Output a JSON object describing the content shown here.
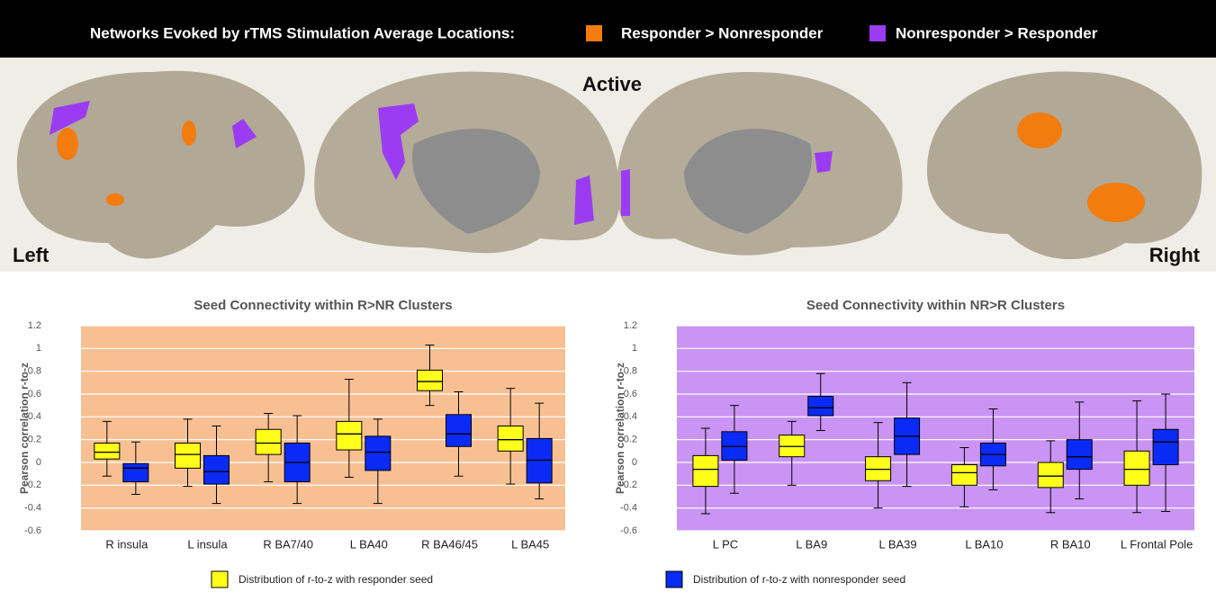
{
  "header": {
    "title": "Networks Evoked by rTMS Stimulation Average Locations:",
    "legend": [
      {
        "label": "Responder > Nonresponder",
        "color": "#f27c0f"
      },
      {
        "label": "Nonresponder > Responder",
        "color": "#9b3cf2"
      }
    ],
    "active": "Active",
    "left": "Left",
    "right": "Right"
  },
  "chart_data": [
    {
      "type": "box",
      "title": "Seed Connectivity within R>NR Clusters",
      "y_label": "Pearson correlation r-to-z",
      "background": "#f8c092",
      "grid": true,
      "categories": [
        "R insula",
        "L insula",
        "R BA7/40",
        "L BA40",
        "R BA46/45",
        "L BA45"
      ],
      "ylim": [
        -0.6,
        1.2
      ],
      "yticks": [
        1.2,
        1,
        0.8,
        0.6,
        0.4,
        0.2,
        0,
        -0.2,
        -0.4,
        -0.6
      ],
      "series": [
        {
          "name": "Distribution of r-to-z  with responder seed",
          "color": "#ffff1a",
          "whislo": [
            -0.12,
            -0.21,
            -0.17,
            -0.13,
            0.5,
            -0.19
          ],
          "q1": [
            0.03,
            -0.05,
            0.07,
            0.11,
            0.63,
            0.1
          ],
          "median": [
            0.09,
            0.07,
            0.17,
            0.25,
            0.71,
            0.2
          ],
          "q3": [
            0.17,
            0.17,
            0.29,
            0.36,
            0.81,
            0.32
          ],
          "whishi": [
            0.36,
            0.38,
            0.43,
            0.73,
            1.03,
            0.65
          ]
        },
        {
          "color": "#0a2bf5",
          "whislo": [
            -0.28,
            -0.36,
            -0.36,
            -0.36,
            -0.12,
            -0.32
          ],
          "q1": [
            -0.17,
            -0.19,
            -0.17,
            -0.07,
            0.14,
            -0.18
          ],
          "median": [
            -0.05,
            -0.08,
            0,
            0.09,
            0.25,
            0.02
          ],
          "q3": [
            -0.01,
            0.06,
            0.17,
            0.23,
            0.42,
            0.21
          ],
          "whishi": [
            0.18,
            0.32,
            0.41,
            0.38,
            0.62,
            0.52
          ]
        }
      ]
    },
    {
      "type": "box",
      "title": "Seed Connectivity within NR>R Clusters",
      "y_label": "Pearson correlation r-to-z",
      "background": "#c994f4",
      "grid": true,
      "categories": [
        "L PC",
        "L BA9",
        "L BA39",
        "L BA10",
        "R BA10",
        "L Frontal Pole"
      ],
      "ylim": [
        -0.6,
        1.2
      ],
      "yticks": [
        1.2,
        1,
        0.8,
        0.6,
        0.4,
        0.2,
        0,
        -0.2,
        -0.4,
        -0.6
      ],
      "series": [
        {
          "color": "#ffff1a",
          "whislo": [
            -0.45,
            -0.2,
            -0.4,
            -0.39,
            -0.44,
            -0.44
          ],
          "q1": [
            -0.21,
            0.05,
            -0.16,
            -0.2,
            -0.22,
            -0.2
          ],
          "median": [
            -0.06,
            0.14,
            -0.06,
            -0.09,
            -0.12,
            -0.06
          ],
          "q3": [
            0.06,
            0.24,
            0.05,
            -0.02,
            0,
            0.1
          ],
          "whishi": [
            0.3,
            0.36,
            0.35,
            0.13,
            0.19,
            0.54
          ]
        },
        {
          "name": "Distribution of r-to-z  with nonresponder seed",
          "color": "#0a2bf5",
          "whislo": [
            -0.27,
            0.28,
            -0.21,
            -0.24,
            -0.32,
            -0.43
          ],
          "q1": [
            0.02,
            0.41,
            0.07,
            -0.03,
            -0.06,
            -0.02
          ],
          "median": [
            0.14,
            0.48,
            0.23,
            0.07,
            0.05,
            0.18
          ],
          "q3": [
            0.27,
            0.58,
            0.39,
            0.17,
            0.2,
            0.29
          ],
          "whishi": [
            0.5,
            0.78,
            0.7,
            0.47,
            0.53,
            0.6
          ]
        }
      ]
    }
  ]
}
